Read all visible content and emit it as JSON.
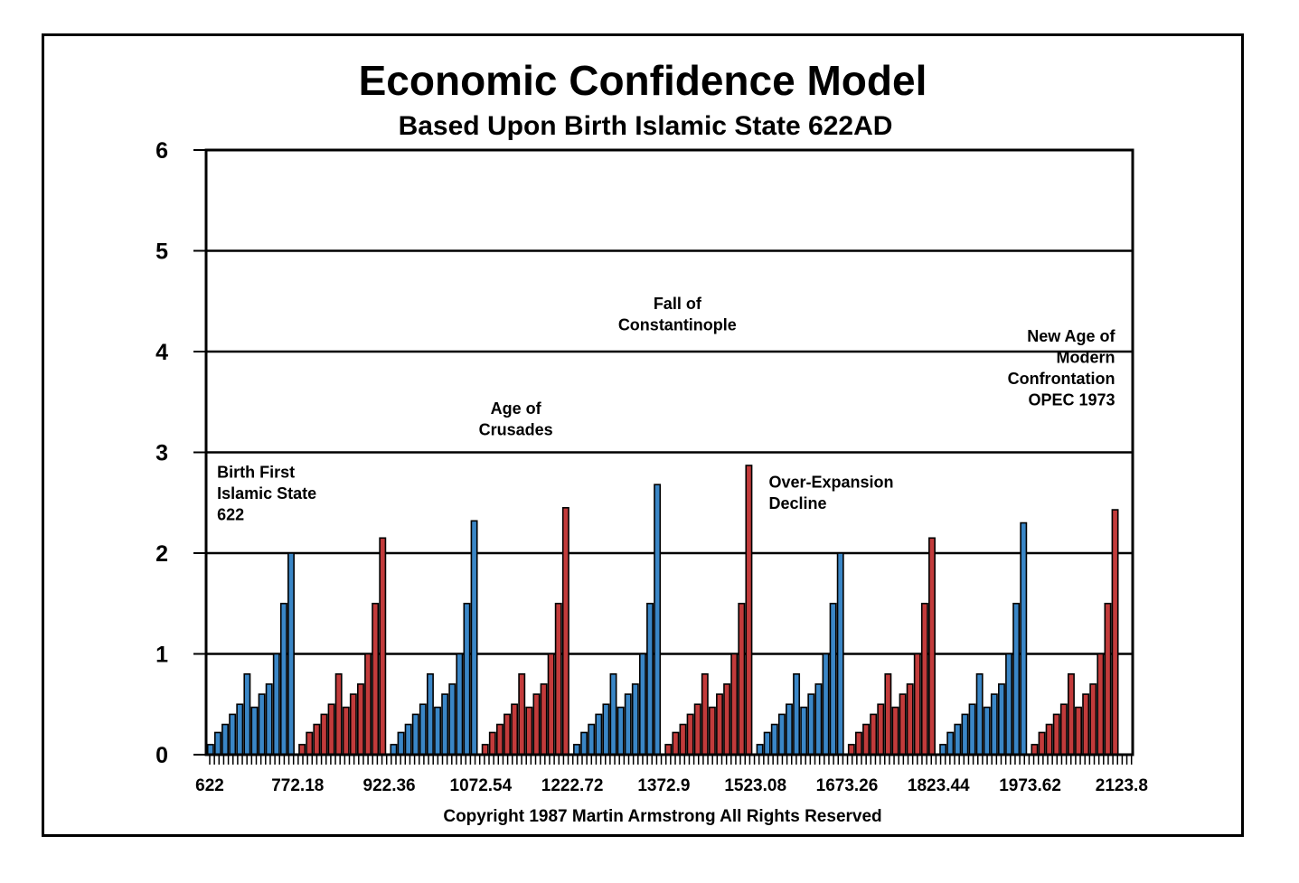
{
  "chart_data": {
    "type": "bar",
    "title": "Economic Confidence Model",
    "subtitle": "Based Upon Birth Islamic State 622AD",
    "copyright": "Copyright 1987 Martin Armstrong All Rights Reserved",
    "ylim": [
      0,
      6
    ],
    "y_ticks": [
      0,
      1,
      2,
      3,
      4,
      5,
      6
    ],
    "x_tick_labels": [
      "622",
      "772.18",
      "922.36",
      "1072.54",
      "1222.72",
      "1372.9",
      "1523.08",
      "1673.26",
      "1823.44",
      "1973.62",
      "2123.8"
    ],
    "grid": "horizontal",
    "colors": {
      "blue": "#3a86c6",
      "red": "#c23b3b",
      "axis": "#000000"
    },
    "cycle_pattern": [
      0.1,
      0.22,
      0.3,
      0.4,
      0.5,
      0.8,
      0.47,
      0.6,
      0.7,
      1.0,
      1.5
    ],
    "cycles": [
      {
        "start": 622.0,
        "color": "blue",
        "peak": 2.0
      },
      {
        "start": 772.18,
        "color": "red",
        "peak": 2.15
      },
      {
        "start": 922.36,
        "color": "blue",
        "peak": 2.32
      },
      {
        "start": 1072.54,
        "color": "red",
        "peak": 2.45
      },
      {
        "start": 1222.72,
        "color": "blue",
        "peak": 2.68
      },
      {
        "start": 1372.9,
        "color": "red",
        "peak": 2.87
      },
      {
        "start": 1523.08,
        "color": "blue",
        "peak": 2.0
      },
      {
        "start": 1673.26,
        "color": "red",
        "peak": 2.15
      },
      {
        "start": 1823.44,
        "color": "blue",
        "peak": 2.3
      },
      {
        "start": 1973.62,
        "color": "red",
        "peak": 2.43
      }
    ],
    "annotations": [
      {
        "lines": [
          "Birth First",
          "Islamic State",
          "622"
        ],
        "x": 640,
        "y": 2.75,
        "align": "start"
      },
      {
        "lines": [
          "Age of",
          "Crusades"
        ],
        "x": 1130,
        "y": 3.38,
        "align": "middle"
      },
      {
        "lines": [
          "Fall of",
          "Constantinople"
        ],
        "x": 1395,
        "y": 4.42,
        "align": "middle"
      },
      {
        "lines": [
          "Over-Expansion",
          "Decline"
        ],
        "x": 1545,
        "y": 2.65,
        "align": "start"
      },
      {
        "lines": [
          "New Age of",
          "Modern",
          "Confrontation",
          "OPEC 1973"
        ],
        "x": 2113,
        "y": 4.1,
        "align": "end"
      }
    ]
  }
}
